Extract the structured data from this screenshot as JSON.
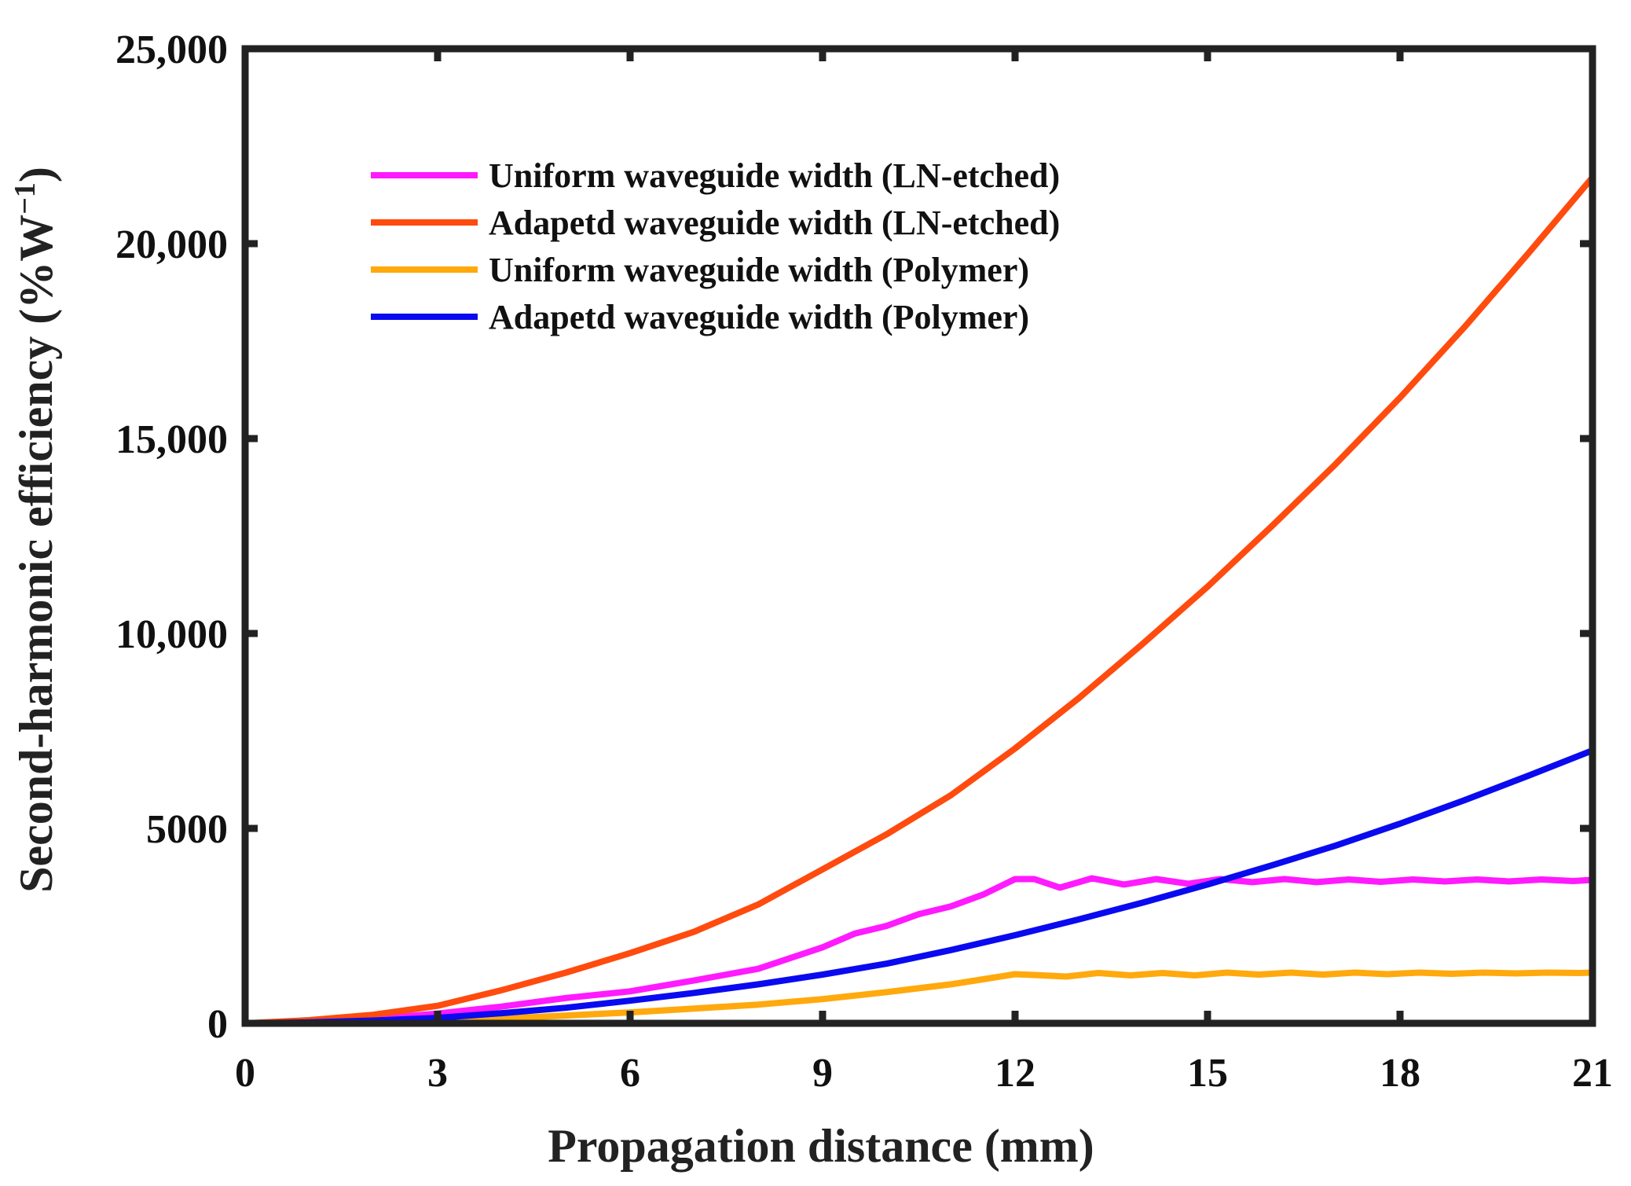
{
  "chart_data": {
    "type": "line",
    "title": "",
    "xlabel": "Propagation distance (mm)",
    "ylabel": "Second-harmonic efficiency (%W",
    "ylabel_sup": "−1",
    "ylabel_close": ")",
    "xlim": [
      0,
      21
    ],
    "ylim": [
      0,
      25000
    ],
    "x_ticks": [
      0,
      3,
      6,
      9,
      12,
      15,
      18,
      21
    ],
    "x_tick_labels": [
      "0",
      "3",
      "6",
      "9",
      "12",
      "15",
      "18",
      "21"
    ],
    "y_ticks": [
      0,
      5000,
      10000,
      15000,
      20000,
      25000
    ],
    "y_tick_labels": [
      "0",
      "5000",
      "10,000",
      "15,000",
      "20,000",
      "25,000"
    ],
    "grid": false,
    "legend_position": "top-left",
    "series": [
      {
        "name": "Uniform waveguide width (LN-etched)",
        "color": "#ff1aff",
        "x": [
          0,
          1,
          2,
          3,
          4,
          5,
          6,
          7,
          7.5,
          8,
          9,
          9.5,
          10,
          10.5,
          11,
          11.5,
          12,
          12.3,
          12.7,
          13.2,
          13.7,
          14.2,
          14.7,
          15.2,
          15.7,
          16.2,
          16.7,
          17.2,
          17.7,
          18.2,
          18.7,
          19.2,
          19.7,
          20.2,
          20.7,
          21
        ],
        "values": [
          0,
          25,
          110,
          250,
          430,
          650,
          820,
          1100,
          1250,
          1400,
          1950,
          2300,
          2500,
          2800,
          3000,
          3300,
          3700,
          3700,
          3480,
          3720,
          3560,
          3700,
          3580,
          3700,
          3620,
          3700,
          3620,
          3690,
          3630,
          3690,
          3640,
          3690,
          3640,
          3690,
          3650,
          3680
        ]
      },
      {
        "name": "Adapetd waveguide width (LN-etched)",
        "color": "#ff4b0e",
        "x": [
          0,
          1,
          2,
          3,
          4,
          5,
          6,
          7,
          8,
          9,
          10,
          11,
          12,
          13,
          14,
          15,
          16,
          17,
          18,
          19,
          20,
          21
        ],
        "values": [
          0,
          80,
          220,
          450,
          850,
          1300,
          1800,
          2350,
          3050,
          3950,
          4850,
          5850,
          7050,
          8350,
          9750,
          11200,
          12750,
          14350,
          16050,
          17850,
          19750,
          21700
        ]
      },
      {
        "name": "Uniform waveguide width (Polymer)",
        "color": "#ffa90d",
        "x": [
          0,
          1,
          2,
          3,
          4,
          5,
          6,
          7,
          8,
          9,
          10,
          11,
          11.5,
          12,
          12.3,
          12.8,
          13.3,
          13.8,
          14.3,
          14.8,
          15.3,
          15.8,
          16.3,
          16.8,
          17.3,
          17.8,
          18.3,
          18.8,
          19.3,
          19.8,
          20.3,
          20.8,
          21
        ],
        "values": [
          0,
          10,
          30,
          60,
          120,
          200,
          280,
          380,
          480,
          620,
          800,
          1000,
          1130,
          1260,
          1240,
          1200,
          1290,
          1230,
          1290,
          1230,
          1300,
          1250,
          1300,
          1250,
          1300,
          1260,
          1300,
          1270,
          1300,
          1280,
          1300,
          1290,
          1300
        ]
      },
      {
        "name": "Adapetd waveguide width (Polymer)",
        "color": "#0a0af0",
        "x": [
          0,
          1,
          2,
          3,
          4,
          5,
          6,
          7,
          8,
          9,
          10,
          11,
          12,
          13,
          14,
          15,
          16,
          17,
          18,
          19,
          20,
          21
        ],
        "values": [
          0,
          25,
          70,
          140,
          260,
          400,
          580,
          780,
          1000,
          1250,
          1530,
          1880,
          2260,
          2670,
          3100,
          3560,
          4050,
          4560,
          5120,
          5720,
          6350,
          7000
        ]
      }
    ]
  }
}
